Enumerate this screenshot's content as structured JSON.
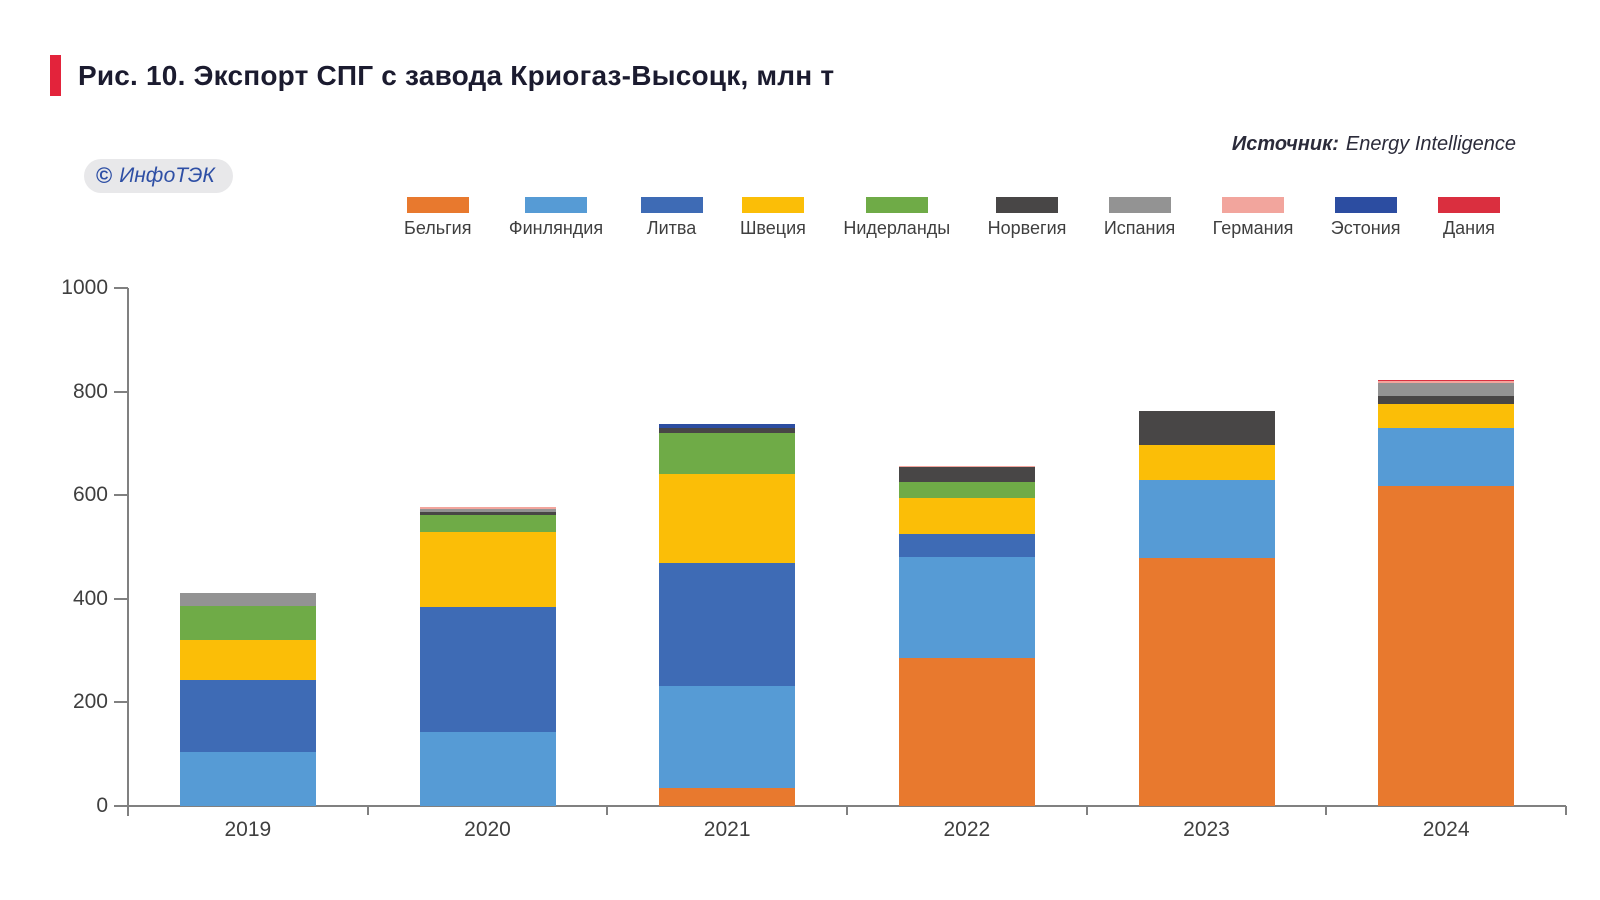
{
  "title": {
    "text": "Рис. 10. Экспорт СПГ с завода Криогаз-Высоцк, млн т"
  },
  "source": {
    "label": "Источник:",
    "value": "Energy Intelligence"
  },
  "watermark": {
    "copyright": "©",
    "text": "ИнфоТЭК"
  },
  "chart_data": {
    "type": "bar",
    "stacked": true,
    "title": "Рис. 10. Экспорт СПГ с завода Криогаз-Высоцк, млн т",
    "xlabel": "",
    "ylabel": "",
    "ylim": [
      0,
      1000
    ],
    "yticks": [
      0,
      200,
      400,
      600,
      800,
      1000
    ],
    "grid": false,
    "legend_position": "top",
    "categories": [
      "2019",
      "2020",
      "2021",
      "2022",
      "2023",
      "2024"
    ],
    "series": [
      {
        "name": "Бельгия",
        "color": "#e8792e",
        "values": [
          0,
          0,
          35,
          285,
          478,
          618
        ]
      },
      {
        "name": "Финляндия",
        "color": "#569bd5",
        "values": [
          104,
          143,
          196,
          195,
          151,
          112
        ]
      },
      {
        "name": "Литва",
        "color": "#3e6bb5",
        "values": [
          139,
          241,
          239,
          45,
          0,
          0
        ]
      },
      {
        "name": "Швеция",
        "color": "#fbbe07",
        "values": [
          77,
          145,
          171,
          70,
          67,
          46
        ]
      },
      {
        "name": "Нидерланды",
        "color": "#6fab47",
        "values": [
          66,
          32,
          80,
          31,
          0,
          0
        ]
      },
      {
        "name": "Норвегия",
        "color": "#484646",
        "values": [
          0,
          6,
          8,
          28,
          67,
          16
        ]
      },
      {
        "name": "Испания",
        "color": "#939393",
        "values": [
          26,
          6,
          0,
          0,
          0,
          24
        ]
      },
      {
        "name": "Германия",
        "color": "#f2a59d",
        "values": [
          0,
          4,
          0,
          3,
          0,
          5
        ]
      },
      {
        "name": "Эстония",
        "color": "#2c4da1",
        "values": [
          0,
          0,
          8,
          0,
          0,
          0
        ]
      },
      {
        "name": "Дания",
        "color": "#da2f3f",
        "values": [
          0,
          0,
          0,
          0,
          0,
          2
        ]
      }
    ]
  }
}
